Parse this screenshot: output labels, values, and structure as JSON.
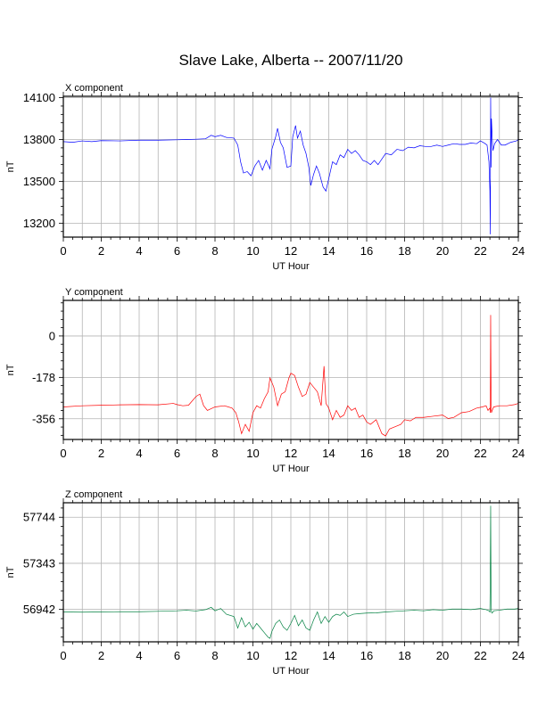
{
  "title": "Slave Lake, Alberta -- 2007/11/20",
  "chart_data": [
    {
      "type": "line",
      "panel_label": "X component",
      "xlabel": "UT Hour",
      "ylabel": "nT",
      "xlim": [
        0,
        24
      ],
      "ylim": [
        13100,
        14110
      ],
      "xticks": [
        0,
        2,
        4,
        6,
        8,
        10,
        12,
        14,
        16,
        18,
        20,
        22,
        24
      ],
      "yticks": [
        13200,
        13500,
        13800,
        14100
      ],
      "grid": true,
      "color": "#0000ff",
      "series": [
        {
          "x": [
            0,
            0.5,
            1,
            1.5,
            2,
            3,
            4,
            5,
            6,
            6.5,
            7,
            7.5,
            7.8,
            8,
            8.3,
            8.6,
            9,
            9.2,
            9.35,
            9.5,
            9.7,
            9.9,
            10.1,
            10.3,
            10.5,
            10.7,
            10.9,
            11,
            11.2,
            11.3,
            11.45,
            11.6,
            11.8,
            12,
            12.1,
            12.25,
            12.35,
            12.5,
            12.65,
            12.8,
            12.95,
            13.05,
            13.2,
            13.35,
            13.5,
            13.7,
            13.85,
            14,
            14.2,
            14.4,
            14.6,
            14.8,
            15,
            15.2,
            15.4,
            15.6,
            15.8,
            16,
            16.2,
            16.4,
            16.6,
            16.8,
            17,
            17.3,
            17.6,
            17.9,
            18.2,
            18.5,
            18.8,
            19.1,
            19.4,
            19.7,
            20,
            20.3,
            20.6,
            20.9,
            21.2,
            21.5,
            21.8,
            22,
            22.2,
            22.35,
            22.45,
            22.5,
            22.52,
            22.54,
            22.56,
            22.58,
            22.62,
            22.66,
            22.75,
            22.9,
            23.1,
            23.3,
            23.6,
            23.9,
            24
          ],
          "y": [
            13785,
            13780,
            13790,
            13785,
            13792,
            13790,
            13795,
            13795,
            13798,
            13800,
            13802,
            13805,
            13830,
            13820,
            13830,
            13815,
            13810,
            13760,
            13640,
            13560,
            13570,
            13540,
            13610,
            13650,
            13580,
            13650,
            13590,
            13730,
            13820,
            13880,
            13780,
            13740,
            13600,
            13610,
            13820,
            13900,
            13810,
            13860,
            13760,
            13700,
            13600,
            13470,
            13550,
            13610,
            13560,
            13460,
            13430,
            13520,
            13640,
            13620,
            13690,
            13670,
            13730,
            13700,
            13720,
            13690,
            13650,
            13640,
            13620,
            13650,
            13620,
            13660,
            13700,
            13690,
            13730,
            13720,
            13745,
            13740,
            13755,
            13750,
            13750,
            13760,
            13750,
            13760,
            13770,
            13765,
            13765,
            13775,
            13770,
            13790,
            13775,
            13760,
            13640,
            13430,
            13120,
            14100,
            13600,
            13950,
            13820,
            13720,
            13770,
            13800,
            13760,
            13760,
            13780,
            13790,
            13800
          ]
        }
      ]
    },
    {
      "type": "line",
      "panel_label": "Y component",
      "xlabel": "UT Hour",
      "ylabel": "nT",
      "xlim": [
        0,
        24
      ],
      "ylim": [
        -445,
        153
      ],
      "xticks": [
        0,
        2,
        4,
        6,
        8,
        10,
        12,
        14,
        16,
        18,
        20,
        22,
        24
      ],
      "yticks": [
        -356,
        -178,
        0
      ],
      "grid": true,
      "color": "#ff0000",
      "series": [
        {
          "x": [
            0,
            1,
            2,
            3,
            4,
            5,
            5.8,
            6,
            6.3,
            6.6,
            7,
            7.2,
            7.4,
            7.6,
            8,
            8.5,
            8.9,
            9.1,
            9.25,
            9.4,
            9.6,
            9.8,
            10,
            10.2,
            10.4,
            10.6,
            10.8,
            10.9,
            11.1,
            11.3,
            11.5,
            11.7,
            11.9,
            12,
            12.2,
            12.4,
            12.6,
            12.8,
            13,
            13.2,
            13.4,
            13.6,
            13.75,
            13.85,
            14,
            14.2,
            14.4,
            14.6,
            14.8,
            15,
            15.2,
            15.4,
            15.6,
            15.8,
            16,
            16.2,
            16.5,
            16.8,
            17,
            17.2,
            17.5,
            17.8,
            18,
            18.3,
            18.6,
            19,
            19.5,
            20,
            20.3,
            20.6,
            21,
            21.4,
            21.8,
            22.1,
            22.3,
            22.4,
            22.5,
            22.52,
            22.54,
            22.56,
            22.58,
            22.62,
            22.7,
            23,
            23.4,
            23.8,
            24
          ],
          "y": [
            -305,
            -300,
            -298,
            -296,
            -295,
            -296,
            -290,
            -295,
            -300,
            -298,
            -260,
            -250,
            -300,
            -320,
            -305,
            -300,
            -310,
            -330,
            -370,
            -420,
            -380,
            -410,
            -330,
            -300,
            -310,
            -270,
            -240,
            -180,
            -220,
            -300,
            -250,
            -240,
            -180,
            -160,
            -170,
            -220,
            -260,
            -250,
            -200,
            -220,
            -240,
            -300,
            -130,
            -290,
            -310,
            -360,
            -320,
            -350,
            -340,
            -300,
            -320,
            -310,
            -350,
            -340,
            -370,
            -380,
            -360,
            -420,
            -430,
            -400,
            -390,
            -380,
            -360,
            -365,
            -350,
            -350,
            -345,
            -340,
            -355,
            -350,
            -330,
            -325,
            -310,
            -305,
            -300,
            -320,
            -310,
            -330,
            90,
            -250,
            -330,
            -320,
            -305,
            -300,
            -300,
            -295,
            -290
          ]
        }
      ]
    },
    {
      "type": "line",
      "panel_label": "Z component",
      "xlabel": "UT Hour",
      "ylabel": "nT",
      "xlim": [
        0,
        24
      ],
      "ylim": [
        56660,
        57870
      ],
      "xticks": [
        0,
        2,
        4,
        6,
        8,
        10,
        12,
        14,
        16,
        18,
        20,
        22,
        24
      ],
      "yticks": [
        56942,
        57343,
        57744
      ],
      "grid": true,
      "color": "#008040",
      "series": [
        {
          "x": [
            0,
            1,
            2,
            3,
            4,
            5,
            6,
            6.5,
            7,
            7.5,
            7.8,
            8,
            8.3,
            8.6,
            9,
            9.2,
            9.4,
            9.6,
            9.8,
            10,
            10.2,
            10.4,
            10.6,
            10.8,
            10.9,
            11,
            11.2,
            11.4,
            11.6,
            11.8,
            12,
            12.2,
            12.4,
            12.6,
            12.8,
            13,
            13.2,
            13.4,
            13.6,
            13.8,
            14,
            14.2,
            14.4,
            14.6,
            14.8,
            15,
            15.3,
            15.6,
            16,
            16.5,
            17,
            17.5,
            18,
            18.5,
            19,
            19.5,
            20,
            20.5,
            21,
            21.5,
            22,
            22.3,
            22.45,
            22.5,
            22.52,
            22.54,
            22.56,
            22.58,
            22.62,
            22.7,
            23,
            23.4,
            23.8,
            24
          ],
          "y": [
            56920,
            56918,
            56920,
            56922,
            56922,
            56925,
            56930,
            56935,
            56928,
            56940,
            56960,
            56930,
            56950,
            56900,
            56880,
            56780,
            56870,
            56790,
            56830,
            56770,
            56820,
            56780,
            56740,
            56700,
            56690,
            56750,
            56820,
            56850,
            56790,
            56760,
            56820,
            56890,
            56800,
            56850,
            56780,
            56760,
            56850,
            56920,
            56820,
            56880,
            56830,
            56880,
            56900,
            56890,
            56920,
            56880,
            56900,
            56905,
            56910,
            56912,
            56920,
            56925,
            56930,
            56935,
            56930,
            56940,
            56935,
            56945,
            56945,
            56940,
            56950,
            56940,
            56930,
            56920,
            57250,
            57844,
            57100,
            56920,
            56910,
            56930,
            56935,
            56945,
            56945,
            56950
          ]
        }
      ]
    }
  ]
}
